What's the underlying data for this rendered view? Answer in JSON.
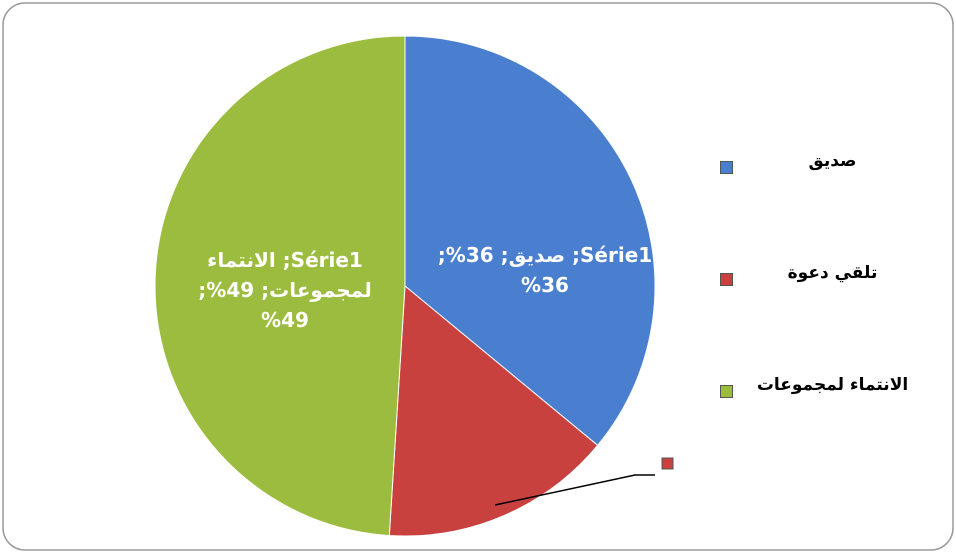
{
  "chart_data": {
    "type": "pie",
    "series": [
      {
        "name": "Série1",
        "categories": [
          "صديق",
          "تلقي دعوة",
          "الانتماء لمجموعات"
        ],
        "values": [
          36,
          15,
          49
        ],
        "value_labels": [
          "Série1; صديق; 36%; 36%",
          null,
          "Série1; الانتماء لمجموعات; 49%; 49%"
        ],
        "colors": [
          "#4a7fcf",
          "#c8413e",
          "#9cbc3f"
        ]
      }
    ]
  }
}
